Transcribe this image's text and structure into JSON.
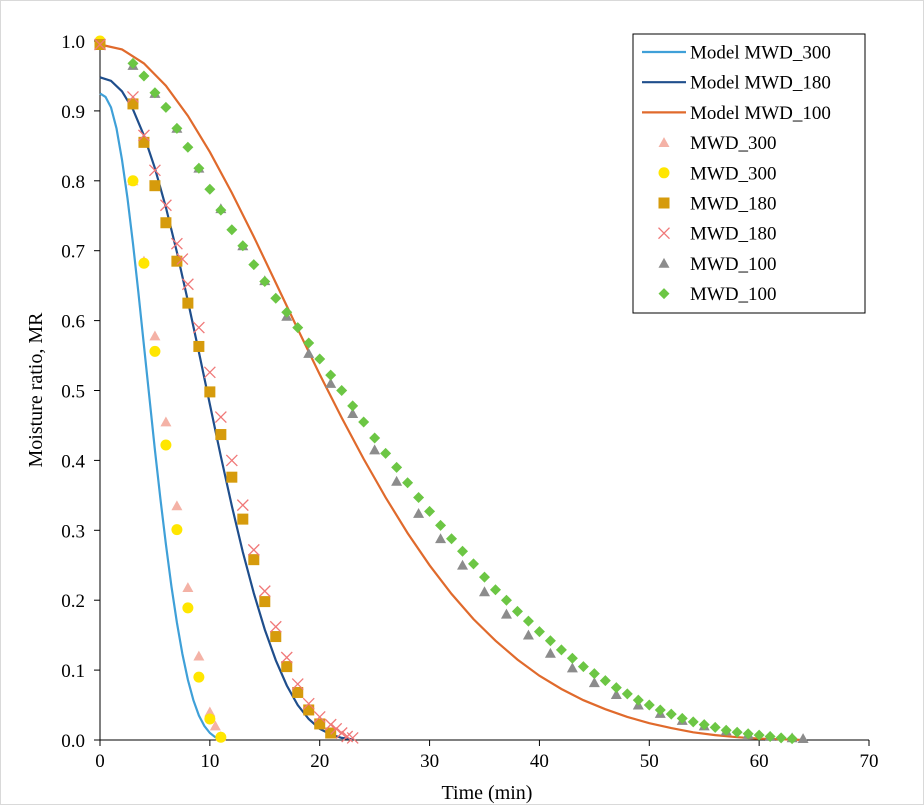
{
  "chart_data": {
    "type": "scatter",
    "title": "",
    "xlabel": "Time (min)",
    "ylabel": "Moisture ratio, MR",
    "xlim": [
      0,
      70
    ],
    "ylim": [
      0,
      1.0
    ],
    "xticks": [
      "0",
      "10",
      "20",
      "30",
      "40",
      "50",
      "60",
      "70"
    ],
    "yticks": [
      "0.0",
      "0.1",
      "0.2",
      "0.3",
      "0.4",
      "0.5",
      "0.6",
      "0.7",
      "0.8",
      "0.9",
      "1.0"
    ],
    "grid": false,
    "legend_position": "top-right",
    "series": [
      {
        "name": "Model MWD_300",
        "kind": "line",
        "color": "#3fa0d8",
        "x": [
          0,
          0.5,
          1,
          1.5,
          2,
          2.5,
          3,
          3.5,
          4,
          4.5,
          5,
          5.5,
          6,
          6.5,
          7,
          7.5,
          8,
          8.5,
          9,
          9.5,
          10,
          10.5,
          11
        ],
        "y": [
          0.925,
          0.92,
          0.905,
          0.875,
          0.83,
          0.775,
          0.71,
          0.64,
          0.565,
          0.49,
          0.415,
          0.345,
          0.28,
          0.22,
          0.168,
          0.123,
          0.086,
          0.057,
          0.035,
          0.02,
          0.01,
          0.004,
          0.001
        ]
      },
      {
        "name": "Model MWD_180",
        "kind": "line",
        "color": "#1f4e8c",
        "x": [
          0,
          1,
          2,
          3,
          4,
          5,
          6,
          7,
          8,
          9,
          10,
          11,
          12,
          13,
          14,
          15,
          16,
          17,
          18,
          19,
          20,
          21,
          22,
          23
        ],
        "y": [
          0.948,
          0.943,
          0.928,
          0.902,
          0.865,
          0.818,
          0.762,
          0.698,
          0.628,
          0.555,
          0.48,
          0.406,
          0.335,
          0.269,
          0.21,
          0.158,
          0.114,
          0.078,
          0.05,
          0.03,
          0.016,
          0.008,
          0.003,
          0.001
        ]
      },
      {
        "name": "Model MWD_100",
        "kind": "line",
        "color": "#e06a2c",
        "x": [
          0,
          2,
          4,
          6,
          8,
          10,
          12,
          14,
          16,
          18,
          20,
          22,
          24,
          26,
          28,
          30,
          32,
          34,
          36,
          38,
          40,
          42,
          44,
          46,
          48,
          50,
          52,
          54,
          56,
          58,
          60,
          62,
          64
        ],
        "y": [
          0.995,
          0.988,
          0.968,
          0.936,
          0.893,
          0.841,
          0.783,
          0.72,
          0.654,
          0.588,
          0.523,
          0.461,
          0.402,
          0.347,
          0.296,
          0.25,
          0.209,
          0.173,
          0.142,
          0.115,
          0.092,
          0.073,
          0.057,
          0.044,
          0.033,
          0.024,
          0.017,
          0.011,
          0.007,
          0.004,
          0.002,
          0.001,
          0.0
        ]
      },
      {
        "name": "MWD_300",
        "kind": "marker",
        "marker": "triangle",
        "color": "#f4b2a6",
        "x": [
          0,
          3,
          4,
          5,
          6,
          7,
          8,
          9,
          10,
          10.5,
          11
        ],
        "y": [
          1.0,
          0.8,
          0.685,
          0.578,
          0.455,
          0.335,
          0.218,
          0.12,
          0.04,
          0.02,
          0.005
        ]
      },
      {
        "name": "MWD_300",
        "kind": "marker",
        "marker": "circle",
        "color": "#ffe600",
        "x": [
          0,
          3,
          4,
          5,
          6,
          7,
          8,
          9,
          10,
          11
        ],
        "y": [
          1.0,
          0.8,
          0.682,
          0.556,
          0.422,
          0.301,
          0.189,
          0.09,
          0.03,
          0.004
        ]
      },
      {
        "name": "MWD_180",
        "kind": "marker",
        "marker": "square",
        "color": "#d69b0c",
        "x": [
          0,
          3,
          4,
          5,
          6,
          7,
          8,
          9,
          10,
          11,
          12,
          13,
          14,
          15,
          16,
          17,
          18,
          19,
          20,
          21
        ],
        "y": [
          0.995,
          0.91,
          0.855,
          0.793,
          0.74,
          0.685,
          0.625,
          0.563,
          0.498,
          0.437,
          0.376,
          0.316,
          0.258,
          0.198,
          0.148,
          0.105,
          0.068,
          0.043,
          0.023,
          0.01
        ]
      },
      {
        "name": "MWD_180",
        "kind": "marker",
        "marker": "cross",
        "color": "#f07878",
        "x": [
          0,
          3,
          4,
          5,
          6,
          7,
          7.5,
          8,
          9,
          10,
          11,
          12,
          13,
          14,
          15,
          16,
          17,
          18,
          19,
          20,
          21,
          21.5,
          22,
          22.5,
          23
        ],
        "y": [
          0.995,
          0.92,
          0.865,
          0.815,
          0.765,
          0.71,
          0.688,
          0.652,
          0.59,
          0.526,
          0.462,
          0.4,
          0.336,
          0.272,
          0.213,
          0.162,
          0.118,
          0.08,
          0.052,
          0.033,
          0.022,
          0.016,
          0.01,
          0.005,
          0.003
        ]
      },
      {
        "name": "MWD_100",
        "kind": "marker",
        "marker": "triangle",
        "color": "#8c8c8c",
        "x": [
          3,
          5,
          7,
          9,
          11,
          13,
          15,
          17,
          19,
          21,
          23,
          25,
          27,
          29,
          31,
          33,
          35,
          37,
          39,
          41,
          43,
          45,
          47,
          49,
          51,
          53,
          55,
          57,
          59,
          61,
          63,
          64
        ],
        "y": [
          0.965,
          0.925,
          0.875,
          0.818,
          0.76,
          0.707,
          0.657,
          0.606,
          0.553,
          0.51,
          0.467,
          0.415,
          0.37,
          0.324,
          0.288,
          0.25,
          0.212,
          0.18,
          0.15,
          0.124,
          0.103,
          0.082,
          0.065,
          0.05,
          0.038,
          0.028,
          0.02,
          0.013,
          0.008,
          0.005,
          0.003,
          0.002
        ]
      },
      {
        "name": "MWD_100",
        "kind": "marker",
        "marker": "diamond",
        "color": "#6cc644",
        "x": [
          3,
          4,
          5,
          6,
          7,
          8,
          9,
          10,
          11,
          12,
          13,
          14,
          15,
          16,
          17,
          18,
          19,
          20,
          21,
          22,
          23,
          24,
          25,
          26,
          27,
          28,
          29,
          30,
          31,
          32,
          33,
          34,
          35,
          36,
          37,
          38,
          39,
          40,
          41,
          42,
          43,
          44,
          45,
          46,
          47,
          48,
          49,
          50,
          51,
          52,
          53,
          54,
          55,
          56,
          57,
          58,
          59,
          60,
          61,
          62,
          63
        ],
        "y": [
          0.968,
          0.95,
          0.926,
          0.905,
          0.875,
          0.848,
          0.818,
          0.788,
          0.758,
          0.73,
          0.707,
          0.68,
          0.656,
          0.632,
          0.612,
          0.59,
          0.568,
          0.545,
          0.522,
          0.5,
          0.478,
          0.455,
          0.432,
          0.41,
          0.39,
          0.368,
          0.347,
          0.327,
          0.307,
          0.288,
          0.27,
          0.252,
          0.233,
          0.215,
          0.2,
          0.184,
          0.17,
          0.155,
          0.142,
          0.129,
          0.117,
          0.105,
          0.095,
          0.085,
          0.075,
          0.066,
          0.057,
          0.05,
          0.043,
          0.037,
          0.031,
          0.026,
          0.022,
          0.018,
          0.014,
          0.011,
          0.009,
          0.007,
          0.005,
          0.003,
          0.002
        ]
      }
    ]
  }
}
